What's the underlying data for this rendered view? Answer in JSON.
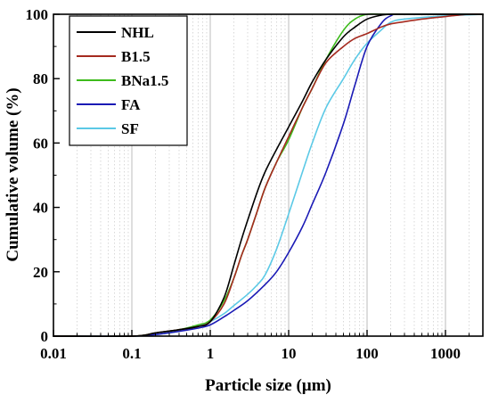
{
  "chart_data": {
    "type": "line",
    "xlabel": "Particle size (µm)",
    "ylabel": "Cumulative volume (%)",
    "xscale": "log",
    "xlim": [
      0.01,
      3000
    ],
    "ylim": [
      0,
      100
    ],
    "xticks": [
      0.01,
      0.1,
      1,
      10,
      100,
      1000
    ],
    "xtick_labels": [
      "0.01",
      "0.1",
      "1",
      "10",
      "100",
      "1000"
    ],
    "yticks": [
      0,
      20,
      40,
      60,
      80,
      100
    ],
    "ytick_labels": [
      "0",
      "20",
      "40",
      "60",
      "80",
      "100"
    ],
    "grid": "vertical minor",
    "legend_position": "top-left",
    "series": [
      {
        "name": "NHL",
        "color": "#000000",
        "x": [
          0.01,
          0.1,
          0.2,
          0.4,
          0.7,
          1,
          1.5,
          2,
          2.5,
          3,
          4,
          5,
          7,
          10,
          15,
          20,
          30,
          50,
          70,
          100,
          150,
          200,
          300,
          1000,
          3000
        ],
        "y": [
          0,
          0,
          1,
          2,
          3,
          4.5,
          12,
          22,
          30,
          36,
          45,
          51,
          58,
          65,
          73,
          79,
          86,
          93,
          96,
          98.5,
          99.7,
          100,
          100,
          100,
          100
        ]
      },
      {
        "name": "B1.5",
        "color": "#a52a1f",
        "x": [
          0.01,
          0.1,
          0.2,
          0.4,
          0.7,
          1,
          1.5,
          2,
          2.5,
          3,
          4,
          5,
          7,
          10,
          15,
          20,
          30,
          50,
          70,
          100,
          150,
          200,
          300,
          500,
          1000,
          2000,
          3000
        ],
        "y": [
          0,
          0,
          1,
          2,
          3,
          4.5,
          10,
          18,
          25,
          30,
          39,
          46,
          54,
          62,
          71,
          77,
          85,
          90,
          92.5,
          94,
          96,
          97,
          97.7,
          98.5,
          99.3,
          100,
          100
        ]
      },
      {
        "name": "BNa1.5",
        "color": "#3dbb1c",
        "x": [
          0.01,
          0.1,
          0.2,
          0.4,
          0.7,
          1,
          1.5,
          2,
          2.5,
          3,
          4,
          5,
          7,
          10,
          15,
          20,
          30,
          50,
          70,
          100,
          150,
          200,
          3000
        ],
        "y": [
          0,
          0,
          1,
          2,
          3.5,
          5,
          11,
          18,
          25,
          30,
          39,
          46,
          54,
          61,
          71,
          77,
          86,
          95,
          98.5,
          100,
          100,
          100,
          100
        ]
      },
      {
        "name": "FA",
        "color": "#1a1ab5",
        "x": [
          0.01,
          0.1,
          0.2,
          0.4,
          0.7,
          1,
          1.5,
          2,
          3,
          5,
          7,
          10,
          15,
          20,
          30,
          50,
          70,
          100,
          150,
          200,
          300,
          3000
        ],
        "y": [
          0,
          0,
          0.5,
          1.5,
          2.5,
          3.5,
          6,
          8,
          11,
          16,
          20,
          26,
          34,
          41,
          51,
          66,
          78,
          90,
          97,
          99.5,
          100,
          100
        ]
      },
      {
        "name": "SF",
        "color": "#5bc9e6",
        "x": [
          0.01,
          0.1,
          0.2,
          0.4,
          0.7,
          1,
          1.5,
          2,
          3,
          4,
          5,
          7,
          10,
          15,
          20,
          30,
          50,
          70,
          100,
          150,
          200,
          300,
          1000,
          3000
        ],
        "y": [
          0,
          0,
          0.5,
          1.5,
          3,
          4.5,
          7,
          9.5,
          13,
          16,
          19,
          27,
          38,
          51,
          60,
          71,
          80,
          86,
          91,
          95,
          97.5,
          98.5,
          99.5,
          100
        ]
      }
    ]
  }
}
